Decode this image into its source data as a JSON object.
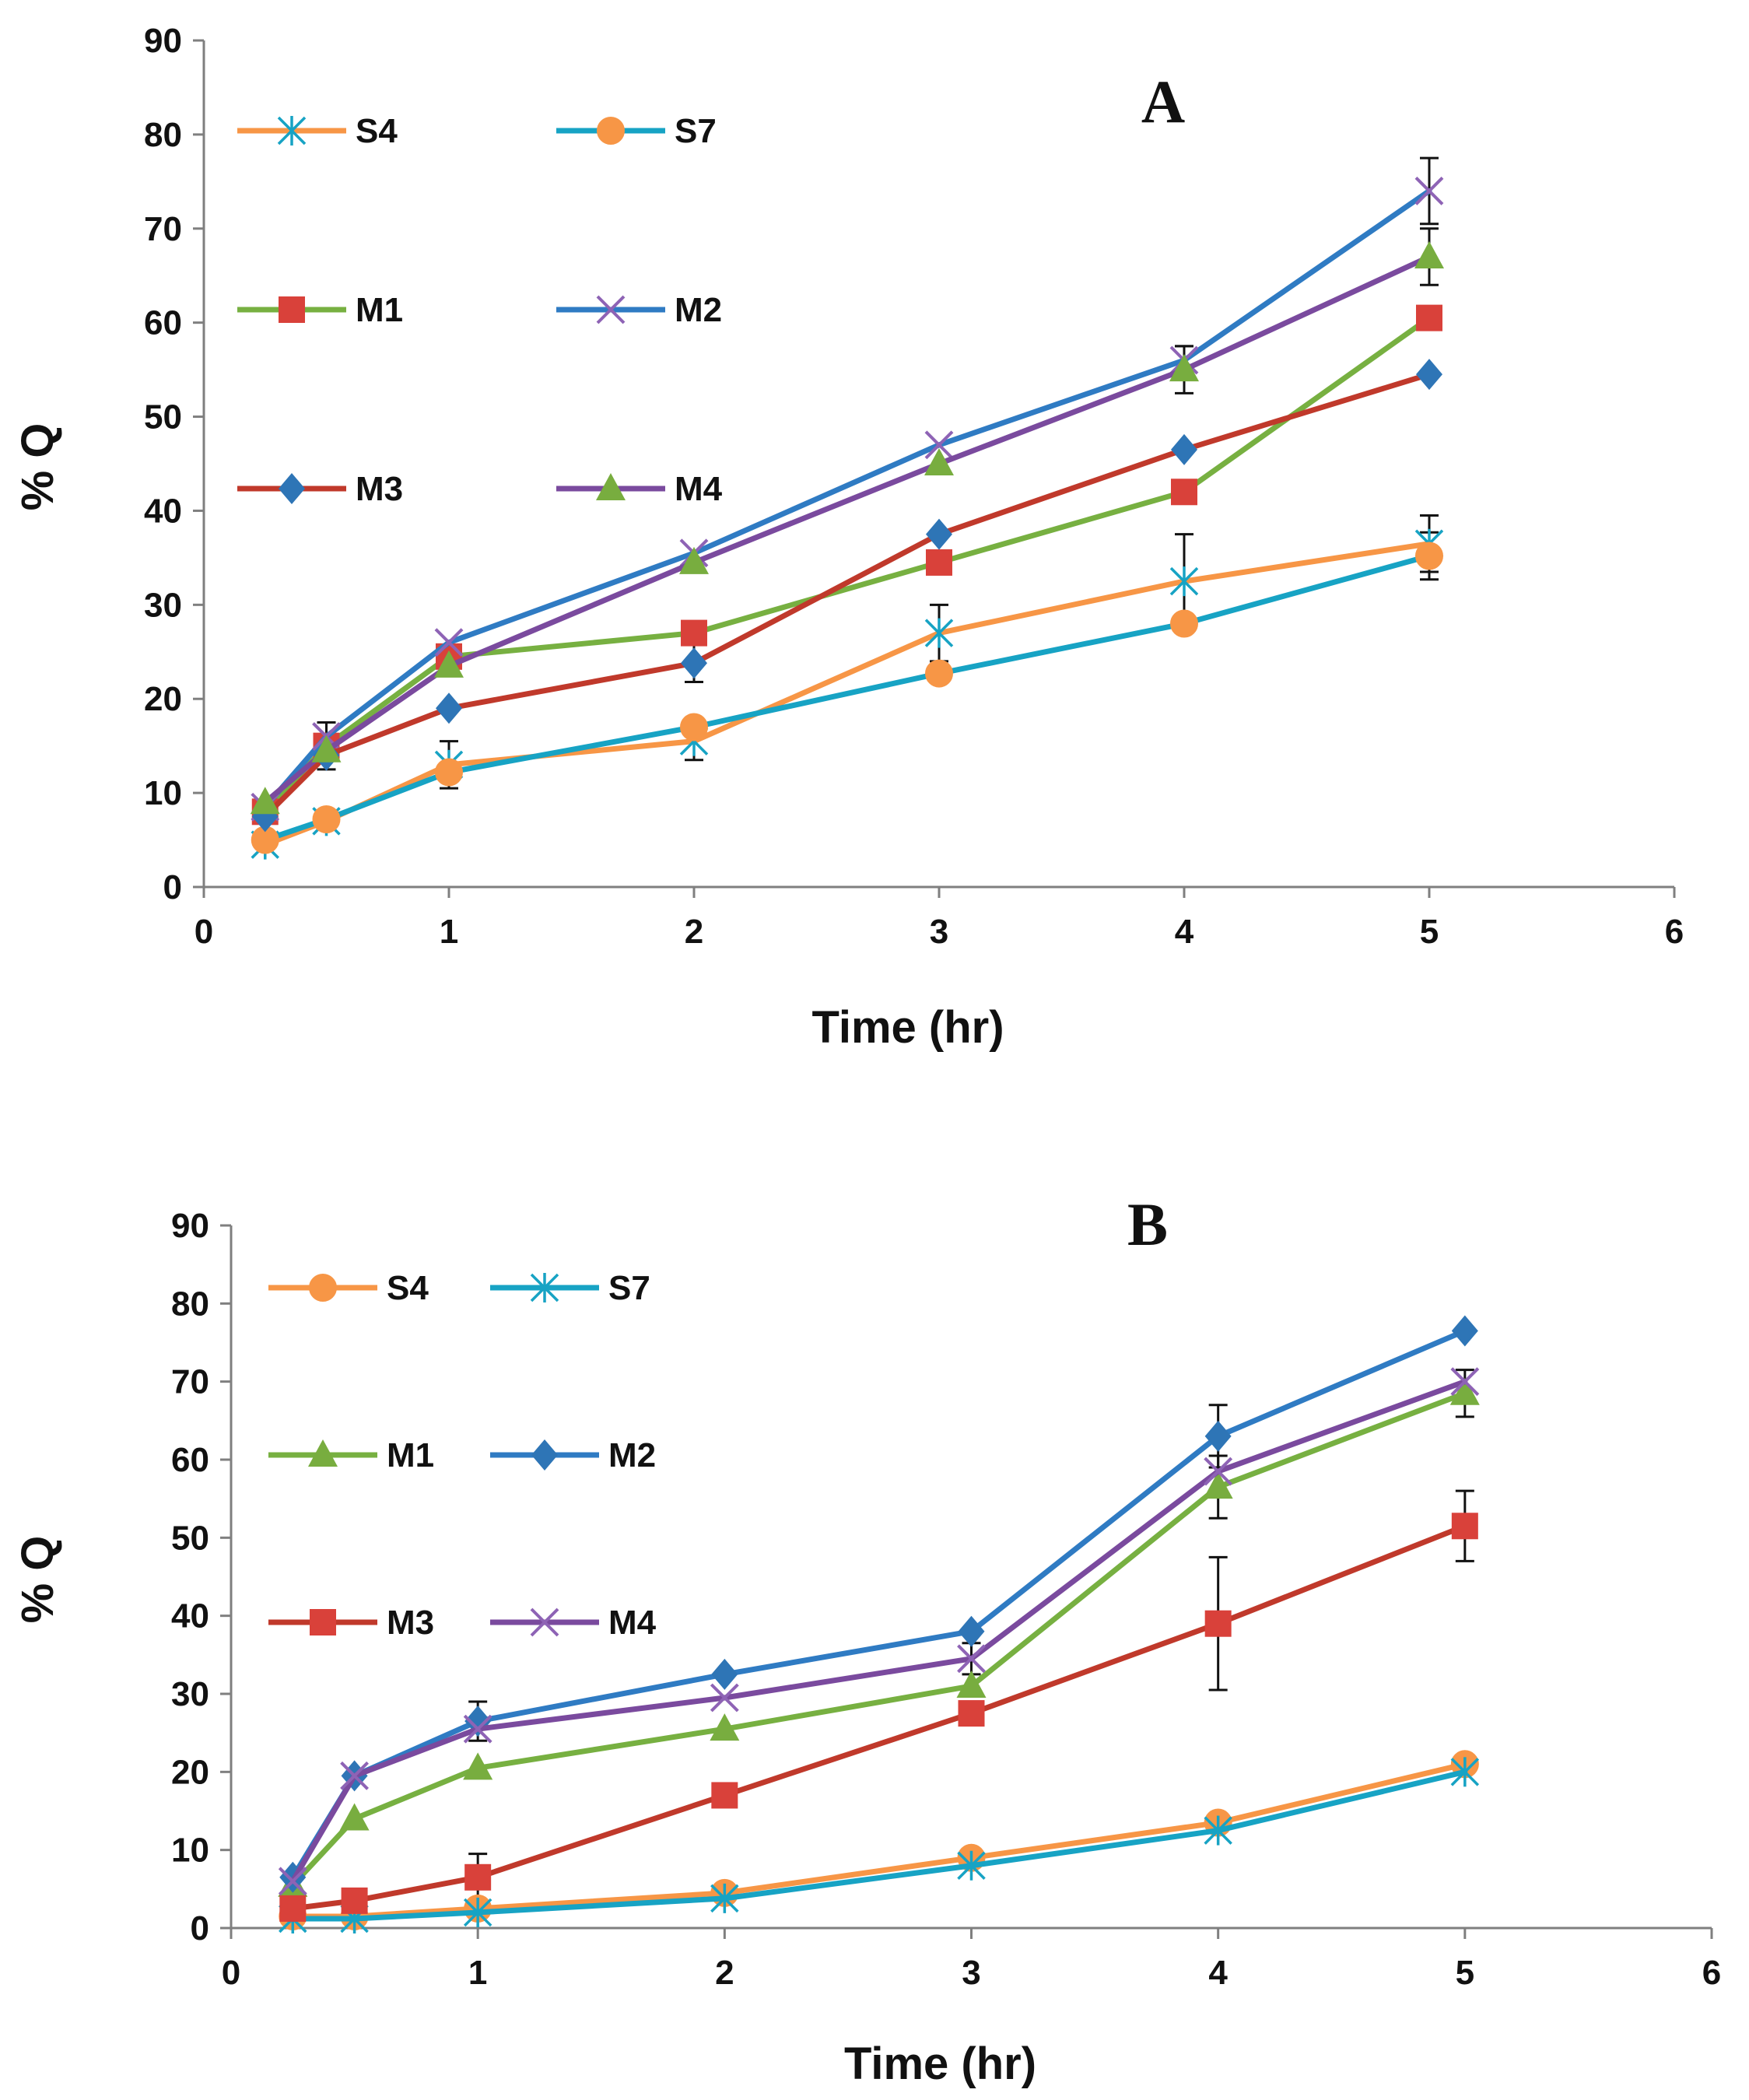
{
  "colors": {
    "orange": "#F79646",
    "cyan": "#17A3C4",
    "green": "#77B041",
    "blue": "#2F7BC3",
    "red": "#C0392B",
    "purple": "#7A4A9E",
    "red_marker": "#D9413A",
    "diamond_marker": "#2E75B6",
    "triangle_marker": "#78AD3F",
    "purple_marker": "#8E63B5",
    "axis": "#7F7F7F"
  },
  "chart_data": [
    {
      "type": "line",
      "panel_label": "A",
      "xlabel": "Time (hr)",
      "ylabel": "% Q",
      "xlim": [
        0,
        6
      ],
      "ylim": [
        0,
        90
      ],
      "xticks": [
        "0",
        "1",
        "2",
        "3",
        "4",
        "5",
        "6"
      ],
      "yticks": [
        "0",
        "10",
        "20",
        "30",
        "40",
        "50",
        "60",
        "70",
        "80",
        "90"
      ],
      "grid": false,
      "legend_position": "upper-left, three rows of two",
      "x": [
        0.25,
        0.5,
        1,
        2,
        3,
        4,
        5
      ],
      "series": [
        {
          "name": "S4",
          "line_color": "orange",
          "marker": "asterisk",
          "marker_color": "cyan",
          "values": [
            4.5,
            7,
            13,
            15.5,
            27,
            32.5,
            36.5
          ],
          "error": [
            null,
            null,
            2.5,
            2,
            3,
            5,
            3
          ]
        },
        {
          "name": "S7",
          "line_color": "cyan",
          "marker": "circle",
          "marker_color": "orange",
          "values": [
            5,
            7.2,
            12.2,
            17,
            22.7,
            28,
            35.2
          ],
          "error": [
            null,
            null,
            null,
            null,
            null,
            null,
            2.5
          ]
        },
        {
          "name": "M1",
          "line_color": "green",
          "marker": "square",
          "marker_color": "red_marker",
          "values": [
            8,
            15,
            24.5,
            27,
            34.5,
            42,
            60.5
          ],
          "error": [
            null,
            2.5,
            null,
            null,
            null,
            null,
            null
          ]
        },
        {
          "name": "M2",
          "line_color": "blue",
          "marker": "x",
          "marker_color": "purple_marker",
          "values": [
            8.5,
            16,
            26,
            35.5,
            47,
            56,
            74
          ],
          "error": [
            null,
            null,
            null,
            null,
            null,
            1.5,
            3.5
          ]
        },
        {
          "name": "M3",
          "line_color": "red",
          "marker": "diamond",
          "marker_color": "diamond_marker",
          "values": [
            7.5,
            14,
            19,
            23.8,
            37.5,
            46.5,
            54.5
          ],
          "error": [
            null,
            null,
            null,
            2,
            null,
            null,
            null
          ]
        },
        {
          "name": "M4",
          "line_color": "purple",
          "marker": "triangle",
          "marker_color": "triangle_marker",
          "values": [
            9,
            14.5,
            23.5,
            34.5,
            45,
            55,
            67
          ],
          "error": [
            null,
            null,
            null,
            null,
            null,
            2.5,
            3
          ]
        }
      ]
    },
    {
      "type": "line",
      "panel_label": "B",
      "xlabel": "Time (hr)",
      "ylabel": "% Q",
      "xlim": [
        0,
        6
      ],
      "ylim": [
        0,
        90
      ],
      "xticks": [
        "0",
        "1",
        "2",
        "3",
        "4",
        "5",
        "6"
      ],
      "yticks": [
        "0",
        "10",
        "20",
        "30",
        "40",
        "50",
        "60",
        "70",
        "80",
        "90"
      ],
      "grid": false,
      "legend_position": "upper-left, three rows of two",
      "x": [
        0.25,
        0.5,
        1,
        2,
        3,
        4,
        5
      ],
      "series": [
        {
          "name": "S4",
          "line_color": "orange",
          "marker": "circle",
          "marker_color": "orange",
          "values": [
            1.5,
            1.5,
            2.5,
            4.5,
            9,
            13.5,
            21
          ],
          "error": [
            null,
            null,
            null,
            null,
            null,
            null,
            null
          ]
        },
        {
          "name": "S7",
          "line_color": "cyan",
          "marker": "asterisk",
          "marker_color": "cyan",
          "values": [
            1.2,
            1.2,
            2,
            3.8,
            8,
            12.5,
            20
          ],
          "error": [
            null,
            null,
            null,
            null,
            null,
            null,
            null
          ]
        },
        {
          "name": "M1",
          "line_color": "green",
          "marker": "triangle",
          "marker_color": "triangle_marker",
          "values": [
            5.5,
            14,
            20.5,
            25.5,
            31,
            56.5,
            68.5
          ],
          "error": [
            null,
            null,
            null,
            null,
            null,
            4,
            3
          ]
        },
        {
          "name": "M2",
          "line_color": "blue",
          "marker": "diamond",
          "marker_color": "diamond_marker",
          "values": [
            6.5,
            19.5,
            26.5,
            32.5,
            38,
            63,
            76.5
          ],
          "error": [
            null,
            null,
            2.5,
            null,
            null,
            4,
            null
          ]
        },
        {
          "name": "M3",
          "line_color": "red",
          "marker": "square",
          "marker_color": "red_marker",
          "values": [
            2.5,
            3.5,
            6.5,
            17,
            27.5,
            39,
            51.5
          ],
          "error": [
            null,
            null,
            3,
            null,
            null,
            8.5,
            4.5
          ]
        },
        {
          "name": "M4",
          "line_color": "purple",
          "marker": "x",
          "marker_color": "purple_marker",
          "values": [
            6,
            19.5,
            25.5,
            29.5,
            34.5,
            58.5,
            70
          ],
          "error": [
            null,
            null,
            null,
            null,
            2,
            null,
            null
          ]
        }
      ]
    }
  ]
}
